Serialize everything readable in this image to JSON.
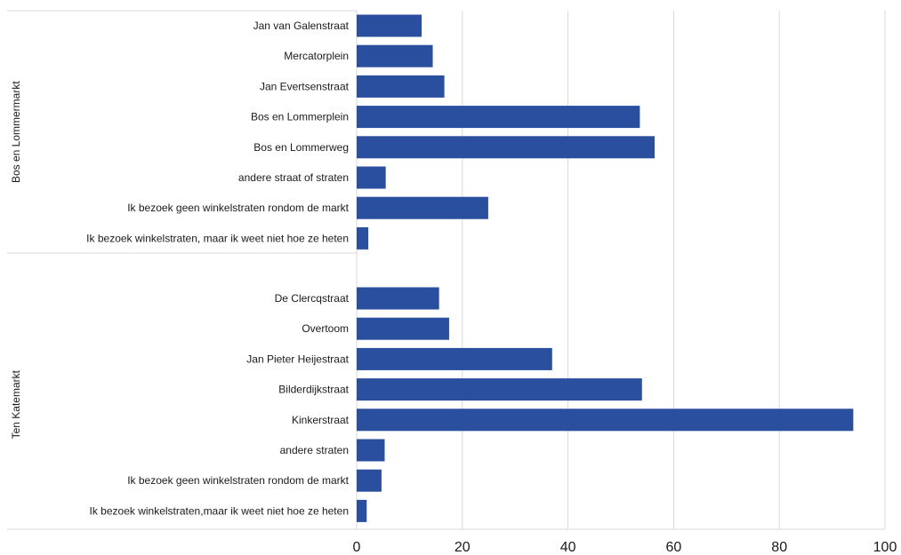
{
  "chart_data": {
    "type": "bar",
    "orientation": "horizontal",
    "bar_color": "#2a4f9e",
    "grid": true,
    "xlim": [
      0,
      100
    ],
    "x_ticks": [
      "0",
      "20",
      "40",
      "60",
      "80",
      "100"
    ],
    "groups": [
      {
        "name": "Bos en Lommermarkt",
        "categories": [
          "Jan van Galenstraat",
          "Mercatorplein",
          "Jan Evertsenstraat",
          "Bos en Lommerplein",
          "Bos en Lommerweg",
          "andere straat of straten",
          "Ik bezoek geen winkelstraten rondom de markt",
          "Ik bezoek winkelstraten, maar ik weet niet hoe ze heten"
        ],
        "values": [
          12.3,
          14.4,
          16.6,
          53.6,
          56.4,
          5.5,
          24.9,
          2.2
        ]
      },
      {
        "name": "Ten Katemarkt",
        "categories": [
          "De Clercqstraat",
          "Overtoom",
          "Jan Pieter Heijestraat",
          "Bilderdijkstraat",
          "Kinkerstraat",
          "andere straten",
          "Ik bezoek geen winkelstraten rondom de markt",
          "Ik bezoek winkelstraten,maar ik weet niet hoe ze heten"
        ],
        "values": [
          15.6,
          17.5,
          37.0,
          54.0,
          94.0,
          5.3,
          4.7,
          1.9
        ]
      }
    ]
  }
}
